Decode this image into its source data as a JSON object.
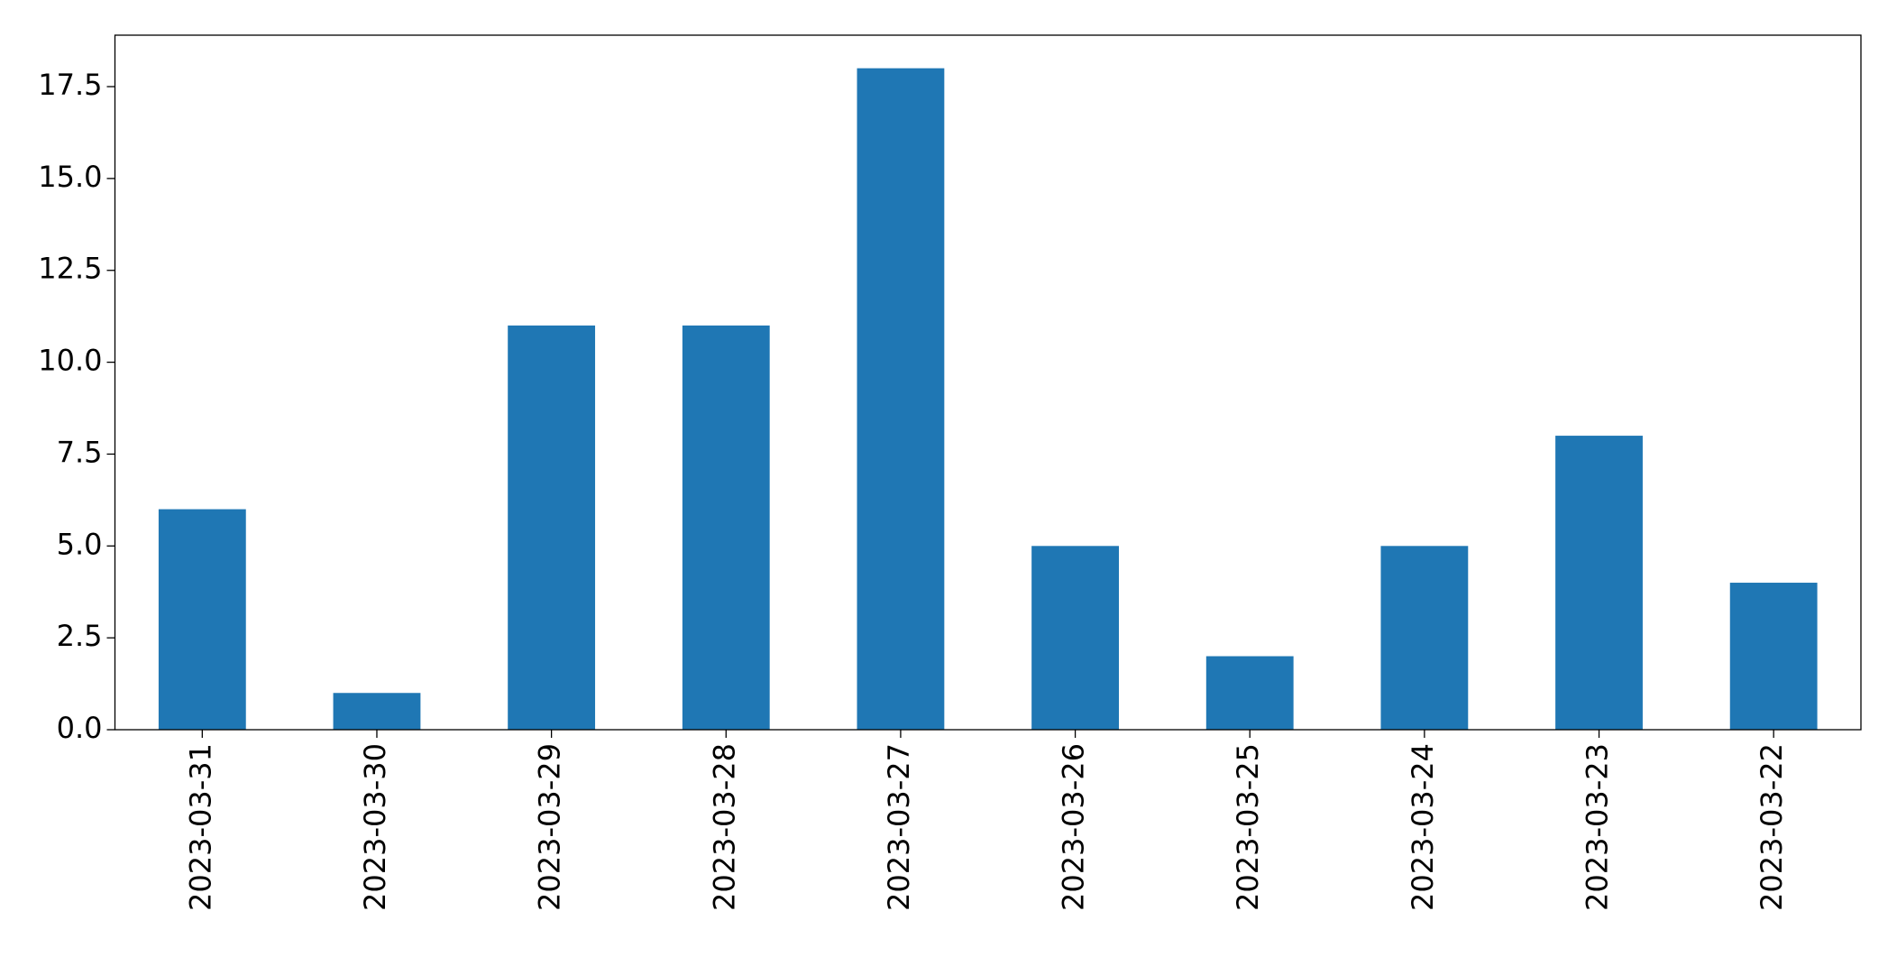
{
  "chart_data": {
    "type": "bar",
    "categories": [
      "2023-03-31",
      "2023-03-30",
      "2023-03-29",
      "2023-03-28",
      "2023-03-27",
      "2023-03-26",
      "2023-03-25",
      "2023-03-24",
      "2023-03-23",
      "2023-03-22"
    ],
    "values": [
      6,
      1,
      11,
      11,
      18,
      5,
      2,
      5,
      8,
      4
    ],
    "color": "#1f77b4",
    "ylim": [
      0,
      18.9
    ],
    "yticks": [
      {
        "value": 0,
        "label": "0.0"
      },
      {
        "value": 2.5,
        "label": "2.5"
      },
      {
        "value": 5,
        "label": "5.0"
      },
      {
        "value": 7.5,
        "label": "7.5"
      },
      {
        "value": 10,
        "label": "10.0"
      },
      {
        "value": 12.5,
        "label": "12.5"
      },
      {
        "value": 15,
        "label": "15.0"
      },
      {
        "value": 17.5,
        "label": "17.5"
      }
    ],
    "grid": false
  }
}
